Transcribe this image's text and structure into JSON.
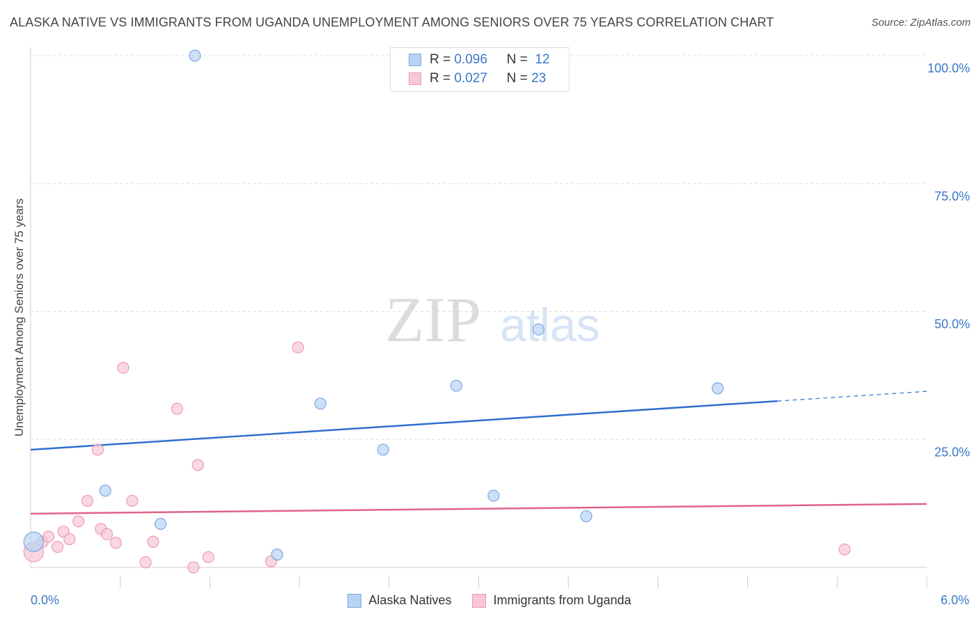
{
  "title": "ALASKA NATIVE VS IMMIGRANTS FROM UGANDA UNEMPLOYMENT AMONG SENIORS OVER 75 YEARS CORRELATION CHART",
  "source": "Source: ZipAtlas.com",
  "watermark": {
    "zip": "ZIP",
    "atlas": "atlas"
  },
  "legend_top": [
    {
      "r_label": "R =",
      "r_value": "0.096",
      "n_label": "N =",
      "n_value": "12"
    },
    {
      "r_label": "R =",
      "r_value": "0.027",
      "n_label": "N =",
      "n_value": "23"
    }
  ],
  "colors": {
    "blue_fill": "#b8d3f5",
    "blue_stroke": "#7fa8df",
    "blue_line": "#2f6fce",
    "pink_fill": "#f8c8d6",
    "pink_stroke": "#ee9ab4",
    "pink_line": "#e0618d",
    "axis_text": "#3a78c9",
    "grid": "#dddddd"
  },
  "chart_data": {
    "type": "scatter",
    "title": "ALASKA NATIVE VS IMMIGRANTS FROM UGANDA UNEMPLOYMENT AMONG SENIORS OVER 75 YEARS CORRELATION CHART",
    "xlabel": "",
    "ylabel": "Unemployment Among Seniors over 75 years",
    "xlim": [
      0,
      6
    ],
    "ylim": [
      0,
      100
    ],
    "x_tick_labels": {
      "min": "0.0%",
      "max": "6.0%"
    },
    "y_ticks": [
      {
        "value": 100,
        "label": "100.0%"
      },
      {
        "value": 75,
        "label": "75.0%"
      },
      {
        "value": 50,
        "label": "50.0%"
      },
      {
        "value": 25,
        "label": "25.0%"
      }
    ],
    "series": [
      {
        "name": "Alaska Natives",
        "points": [
          {
            "x": 0.02,
            "y": 5.0
          },
          {
            "x": 1.1,
            "y": 100.0
          },
          {
            "x": 0.5,
            "y": 15.0
          },
          {
            "x": 0.87,
            "y": 8.5
          },
          {
            "x": 1.65,
            "y": 2.5
          },
          {
            "x": 1.94,
            "y": 32.0
          },
          {
            "x": 2.36,
            "y": 23.0
          },
          {
            "x": 2.85,
            "y": 35.5
          },
          {
            "x": 3.1,
            "y": 14.0
          },
          {
            "x": 3.4,
            "y": 46.5
          },
          {
            "x": 3.72,
            "y": 10.0
          },
          {
            "x": 4.6,
            "y": 35.0
          }
        ],
        "trend": {
          "x0": 0,
          "y0": 23.0,
          "x1": 5.0,
          "y1": 32.5,
          "x_dash_end": 6.0,
          "y_dash_end": 34.4
        }
      },
      {
        "name": "Immigrants from Uganda",
        "points": [
          {
            "x": 0.02,
            "y": 3.0
          },
          {
            "x": 0.08,
            "y": 5.0
          },
          {
            "x": 0.12,
            "y": 6.0
          },
          {
            "x": 0.18,
            "y": 4.0
          },
          {
            "x": 0.22,
            "y": 7.0
          },
          {
            "x": 0.26,
            "y": 5.5
          },
          {
            "x": 0.32,
            "y": 9.0
          },
          {
            "x": 0.38,
            "y": 13.0
          },
          {
            "x": 0.45,
            "y": 23.0
          },
          {
            "x": 0.47,
            "y": 7.5
          },
          {
            "x": 0.51,
            "y": 6.5
          },
          {
            "x": 0.57,
            "y": 4.8
          },
          {
            "x": 0.62,
            "y": 39.0
          },
          {
            "x": 0.68,
            "y": 13.0
          },
          {
            "x": 0.77,
            "y": 1.0
          },
          {
            "x": 0.82,
            "y": 5.0
          },
          {
            "x": 0.98,
            "y": 31.0
          },
          {
            "x": 1.09,
            "y": 0.0
          },
          {
            "x": 1.12,
            "y": 20.0
          },
          {
            "x": 1.19,
            "y": 2.0
          },
          {
            "x": 1.61,
            "y": 1.2
          },
          {
            "x": 1.79,
            "y": 43.0
          },
          {
            "x": 5.45,
            "y": 3.5
          }
        ],
        "trend": {
          "x0": 0,
          "y0": 10.5,
          "x1": 6.0,
          "y1": 12.4
        }
      }
    ],
    "legend": [
      "Alaska Natives",
      "Immigrants from Uganda"
    ],
    "legend_position": "bottom-center",
    "grid": true
  }
}
